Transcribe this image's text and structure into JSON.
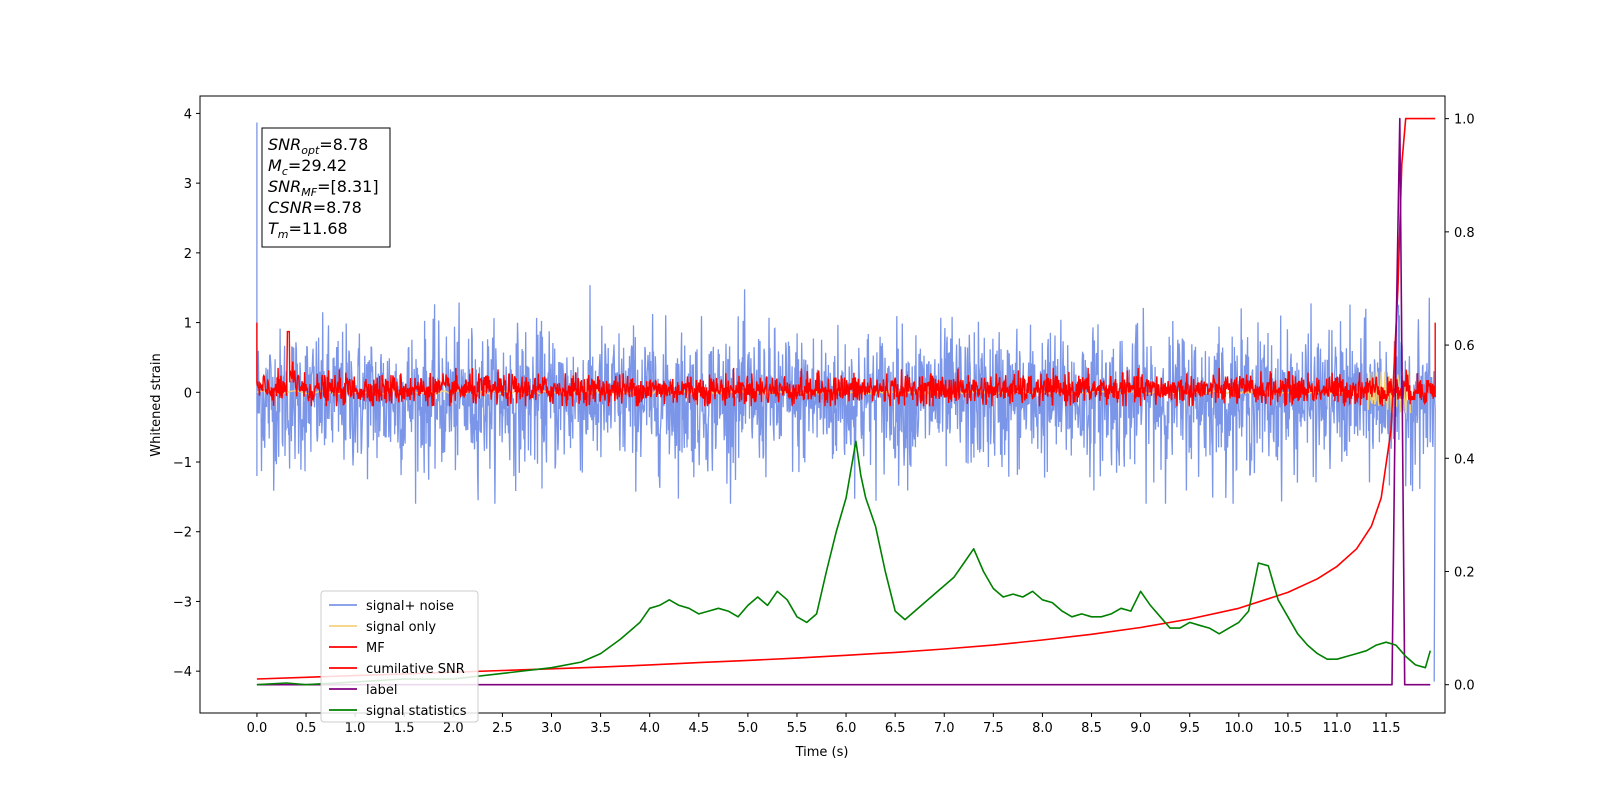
{
  "chart_data": {
    "type": "line",
    "xlabel": "Time (s)",
    "ylabel": "Whitened strain",
    "xlim": [
      -0.58,
      12.1
    ],
    "ylim": [
      -4.6,
      4.25
    ],
    "y2lim": [
      -0.05,
      1.04
    ],
    "x_ticks": [
      "0.0",
      "0.5",
      "1.0",
      "1.5",
      "2.0",
      "2.5",
      "3.0",
      "3.5",
      "4.0",
      "4.5",
      "5.0",
      "5.5",
      "6.0",
      "6.5",
      "7.0",
      "7.5",
      "8.0",
      "8.5",
      "9.0",
      "9.5",
      "10.0",
      "10.5",
      "11.0",
      "11.5"
    ],
    "y_ticks": [
      "4",
      "3",
      "2",
      "1",
      "0",
      "−1",
      "−2",
      "−3",
      "−4"
    ],
    "y2_ticks": [
      "1.0",
      "0.8",
      "0.6",
      "0.4",
      "0.2",
      "0.0"
    ],
    "info_box": [
      {
        "sym": "SNR",
        "sub": "opt",
        "val": "=8.78"
      },
      {
        "sym": "M",
        "sub": "c",
        "val": "=29.42"
      },
      {
        "sym": "SNR",
        "sub": "MF",
        "val": "=[8.31]"
      },
      {
        "sym": "CSNR",
        "sub": "",
        "val": "=8.78"
      },
      {
        "sym": "T",
        "sub": "m",
        "val": "=11.68"
      }
    ],
    "legend": {
      "placement": "lower-left",
      "entries": [
        {
          "label": "signal+ noise",
          "color": "#7b96e8"
        },
        {
          "label": "signal only",
          "color": "#f5d27a"
        },
        {
          "label": "MF",
          "color": "#ff0000"
        },
        {
          "label": "cumilative SNR",
          "color": "#ff0000"
        },
        {
          "label": "label",
          "color": "#800080"
        },
        {
          "label": "signal statistics",
          "color": "#008000"
        }
      ]
    },
    "series": [
      {
        "name": "signal+ noise",
        "axis": "left",
        "color": "#7b96e8",
        "x_range": [
          0.0,
          12.0
        ],
        "envelope": [
          -1.6,
          1.9
        ],
        "mean": -0.1,
        "spikes": [
          {
            "x": 0.0,
            "y": 3.87
          },
          {
            "x": 0.0,
            "y": -1.2
          },
          {
            "x": 11.99,
            "y": -4.15
          }
        ]
      },
      {
        "name": "signal only",
        "axis": "left",
        "color": "#f5d27a",
        "x_range": [
          0.0,
          11.75
        ],
        "amplitude": 0.3
      },
      {
        "name": "MF",
        "axis": "left",
        "color": "#ff0000",
        "x_range": [
          0.0,
          12.0
        ],
        "envelope": [
          -0.2,
          0.35
        ],
        "spikes": [
          {
            "x": 0.0,
            "y": 1.0
          },
          {
            "x": 0.32,
            "y": 0.87
          },
          {
            "x": 12.0,
            "y": 1.0
          }
        ]
      },
      {
        "name": "cumilative SNR",
        "axis": "right",
        "color": "#ff0000",
        "x": [
          0.0,
          0.5,
          1.0,
          1.5,
          2.0,
          2.5,
          3.0,
          3.5,
          4.0,
          4.5,
          5.0,
          5.5,
          6.0,
          6.5,
          7.0,
          7.5,
          8.0,
          8.5,
          9.0,
          9.5,
          10.0,
          10.5,
          10.8,
          11.0,
          11.2,
          11.35,
          11.45,
          11.55,
          11.62,
          11.66,
          11.7,
          12.0
        ],
        "y": [
          0.01,
          0.013,
          0.016,
          0.019,
          0.022,
          0.025,
          0.028,
          0.031,
          0.035,
          0.039,
          0.043,
          0.047,
          0.052,
          0.057,
          0.063,
          0.07,
          0.079,
          0.089,
          0.101,
          0.116,
          0.135,
          0.163,
          0.187,
          0.209,
          0.24,
          0.28,
          0.33,
          0.45,
          0.7,
          0.92,
          1.0,
          1.0
        ]
      },
      {
        "name": "label",
        "axis": "right",
        "color": "#800080",
        "x": [
          0.0,
          11.56,
          11.6,
          11.64,
          11.69,
          11.72,
          11.95
        ],
        "y": [
          0.0,
          0.0,
          0.6,
          1.0,
          0.0,
          0.0,
          0.0
        ]
      },
      {
        "name": "signal statistics",
        "axis": "right",
        "color": "#008000",
        "x": [
          0.0,
          0.3,
          0.5,
          1.0,
          1.5,
          2.0,
          2.5,
          3.0,
          3.3,
          3.5,
          3.7,
          3.9,
          4.0,
          4.1,
          4.2,
          4.3,
          4.4,
          4.5,
          4.6,
          4.7,
          4.8,
          4.9,
          5.0,
          5.1,
          5.2,
          5.3,
          5.4,
          5.5,
          5.6,
          5.7,
          5.8,
          5.9,
          6.0,
          6.05,
          6.1,
          6.15,
          6.2,
          6.3,
          6.4,
          6.5,
          6.6,
          6.7,
          6.8,
          6.9,
          7.0,
          7.1,
          7.2,
          7.3,
          7.4,
          7.5,
          7.6,
          7.7,
          7.8,
          7.9,
          8.0,
          8.1,
          8.2,
          8.3,
          8.4,
          8.5,
          8.6,
          8.7,
          8.8,
          8.9,
          9.0,
          9.1,
          9.2,
          9.3,
          9.4,
          9.5,
          9.6,
          9.7,
          9.8,
          9.9,
          10.0,
          10.1,
          10.2,
          10.3,
          10.4,
          10.5,
          10.6,
          10.7,
          10.8,
          10.9,
          11.0,
          11.1,
          11.2,
          11.3,
          11.4,
          11.5,
          11.6,
          11.7,
          11.8,
          11.9,
          11.95
        ],
        "y": [
          0.0,
          0.003,
          0.0,
          0.005,
          0.01,
          0.01,
          0.02,
          0.03,
          0.04,
          0.055,
          0.08,
          0.11,
          0.135,
          0.14,
          0.15,
          0.14,
          0.135,
          0.125,
          0.13,
          0.135,
          0.13,
          0.12,
          0.14,
          0.155,
          0.14,
          0.165,
          0.15,
          0.12,
          0.11,
          0.125,
          0.2,
          0.27,
          0.33,
          0.38,
          0.43,
          0.37,
          0.33,
          0.28,
          0.2,
          0.13,
          0.115,
          0.13,
          0.145,
          0.16,
          0.175,
          0.19,
          0.215,
          0.24,
          0.2,
          0.17,
          0.155,
          0.16,
          0.155,
          0.165,
          0.15,
          0.145,
          0.13,
          0.12,
          0.125,
          0.12,
          0.12,
          0.125,
          0.135,
          0.13,
          0.165,
          0.14,
          0.12,
          0.1,
          0.1,
          0.11,
          0.105,
          0.1,
          0.09,
          0.1,
          0.11,
          0.13,
          0.215,
          0.21,
          0.15,
          0.12,
          0.09,
          0.07,
          0.055,
          0.045,
          0.045,
          0.05,
          0.055,
          0.06,
          0.07,
          0.075,
          0.07,
          0.05,
          0.035,
          0.03,
          0.06
        ]
      }
    ]
  }
}
